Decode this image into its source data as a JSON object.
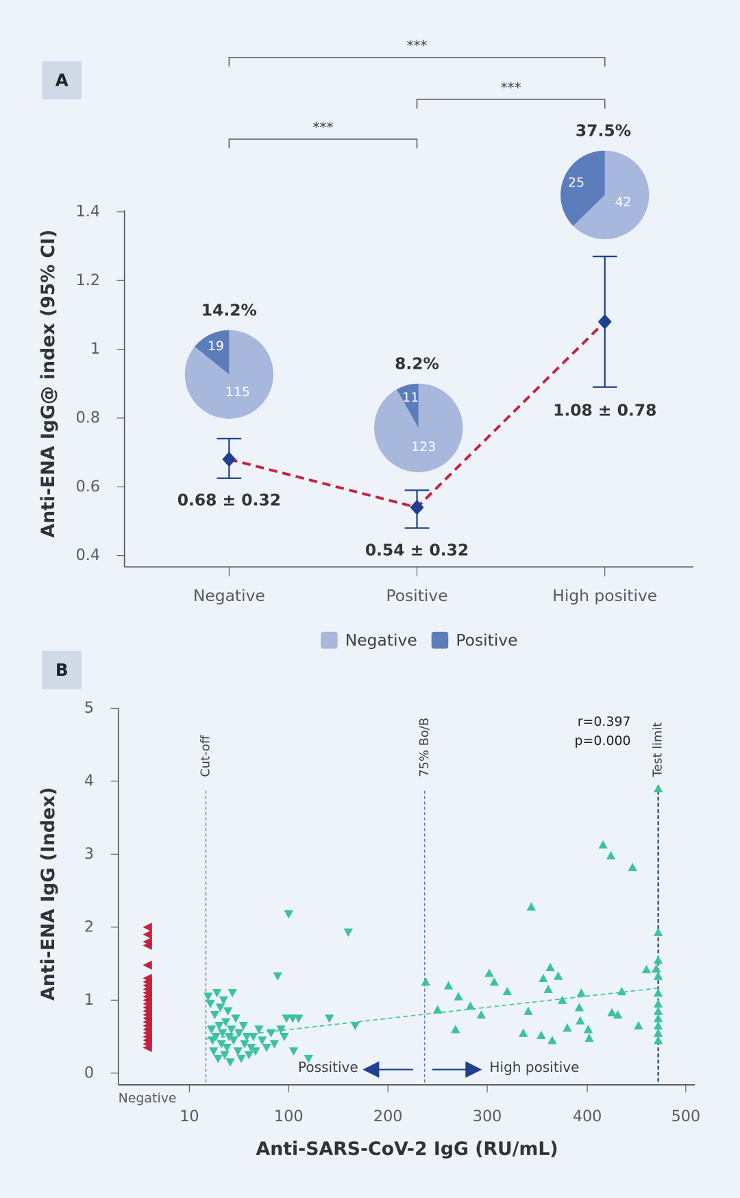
{
  "chart_data": [
    {
      "type": "errorbar",
      "panel": "A",
      "y_label": "Anti-ENA IgG@ index (95% CI)",
      "categories": [
        "Negative",
        "Positive",
        "High positive"
      ],
      "values": [
        0.68,
        0.54,
        1.08
      ],
      "value_labels": [
        "0.68 ± 0.32",
        "0.54 ± 0.32",
        "1.08 ± 0.78"
      ],
      "ci_low": [
        0.625,
        0.48,
        0.89
      ],
      "ci_high": [
        0.74,
        0.59,
        1.27
      ],
      "color": "#1f3f8f",
      "line_color": "#c8203c",
      "ylim": [
        0.367,
        1.4
      ],
      "yticks": [
        0.4,
        0.6,
        0.8,
        1,
        1.2,
        1.4
      ],
      "pies": {
        "series": [
          {
            "name": "Negative",
            "color": "#a7b8dc",
            "values": [
              115,
              123,
              42
            ]
          },
          {
            "name": "Positive",
            "color": "#5b7dbb",
            "values": [
              19,
              11,
              25
            ]
          }
        ],
        "percent": [
          14.2,
          8.2,
          37.5
        ],
        "percent_labels": [
          "14.2%",
          "8.2%",
          "37.5%"
        ]
      },
      "brackets": [
        {
          "from": 0,
          "to": 2,
          "label": "***"
        },
        {
          "from": 1,
          "to": 2,
          "label": "***"
        },
        {
          "from": 0,
          "to": 1,
          "label": "***"
        }
      ],
      "legend": "bottom"
    },
    {
      "type": "scatter",
      "panel": "B",
      "x_label": "Anti-SARS-CoV-2 IgG (RU/mL)",
      "y_label": "Anti-ENA IgG (Index)",
      "xlim": [
        -7,
        509
      ],
      "xticks": [
        {
          "value": 0,
          "label": "Negative"
        },
        10,
        100,
        200,
        300,
        400,
        500
      ],
      "ylim": [
        -0.16,
        5
      ],
      "yticks": [
        0,
        1,
        2,
        3,
        4,
        5
      ],
      "series": [
        {
          "color": "#c8203c",
          "marker": "triangle-left",
          "x": [
            0,
            0,
            0,
            0,
            0,
            0,
            0,
            0,
            0,
            0,
            0,
            0,
            0,
            0,
            0,
            0,
            0,
            0,
            0,
            0,
            0,
            0,
            0,
            0,
            0
          ],
          "y": [
            2.0,
            1.9,
            1.8,
            1.75,
            1.48,
            1.3,
            1.25,
            1.2,
            1.15,
            1.1,
            1.05,
            1.0,
            0.95,
            0.9,
            0.85,
            0.8,
            0.75,
            0.7,
            0.65,
            0.6,
            0.55,
            0.5,
            0.45,
            0.4,
            0.35
          ]
        },
        {
          "color": "#3cc39a",
          "marker": "triangle-down",
          "x": [
            27,
            29,
            30,
            31,
            32,
            33,
            34,
            35,
            36,
            37,
            38,
            39,
            40,
            41,
            42,
            43,
            44,
            45,
            46,
            47,
            48,
            49,
            50,
            52,
            54,
            55,
            57,
            59,
            60,
            62,
            64,
            66,
            68,
            70,
            73,
            76,
            80,
            84,
            87,
            90,
            100,
            160,
            98,
            104,
            110,
            93,
            96,
            120,
            105,
            167,
            141
          ],
          "y": [
            1.05,
            0.95,
            0.6,
            0.45,
            0.3,
            0.8,
            0.5,
            1.1,
            0.2,
            0.65,
            0.9,
            0.4,
            0.55,
            1.0,
            0.25,
            0.7,
            0.35,
            0.85,
            0.5,
            0.15,
            0.6,
            1.1,
            0.45,
            0.75,
            0.3,
            0.55,
            0.2,
            0.65,
            0.4,
            0.5,
            0.25,
            0.35,
            0.5,
            0.3,
            0.6,
            0.45,
            0.35,
            0.55,
            0.4,
            1.33,
            2.18,
            1.93,
            0.75,
            0.75,
            0.75,
            0.6,
            0.5,
            0.2,
            0.3,
            0.65,
            0.75
          ]
        },
        {
          "color": "#3cc39a",
          "marker": "triangle-up",
          "x": [
            238,
            250,
            261,
            268,
            271,
            283,
            294,
            302,
            307,
            320,
            336,
            344,
            341,
            354,
            356,
            363,
            361,
            365,
            371,
            375,
            380,
            392,
            393,
            394,
            401,
            402,
            416,
            424,
            425,
            431,
            435,
            446,
            452,
            460,
            470,
            472,
            472,
            472,
            472,
            472,
            472,
            472,
            472,
            472,
            472,
            472
          ],
          "y": [
            1.25,
            0.87,
            1.2,
            0.6,
            1.05,
            0.92,
            0.8,
            1.37,
            1.25,
            1.12,
            0.55,
            2.28,
            0.85,
            0.52,
            1.3,
            1.45,
            1.15,
            0.45,
            1.33,
            1.0,
            0.62,
            0.9,
            0.72,
            1.1,
            0.6,
            0.48,
            3.13,
            2.98,
            0.83,
            0.8,
            1.12,
            2.82,
            0.65,
            1.42,
            1.43,
            3.9,
            1.93,
            1.55,
            1.33,
            1.1,
            0.95,
            0.85,
            0.75,
            0.65,
            0.55,
            0.45
          ]
        }
      ],
      "reference_lines": [
        {
          "x": 25,
          "label": "Cut-off",
          "color": "#3355aa"
        },
        {
          "x": 237,
          "label": "75% Bo/B",
          "color": "#3355aa"
        },
        {
          "x": 472,
          "label": "Test limit",
          "color": "#1f3f8f"
        }
      ],
      "trendline": {
        "x": [
          25,
          475
        ],
        "y": [
          0.47,
          1.17
        ],
        "color": "#3cc39a"
      },
      "annotations": [
        "r=0.397",
        "p=0.000"
      ],
      "regions": [
        {
          "label": "Possitive"
        },
        {
          "label": "High positive"
        }
      ]
    }
  ]
}
